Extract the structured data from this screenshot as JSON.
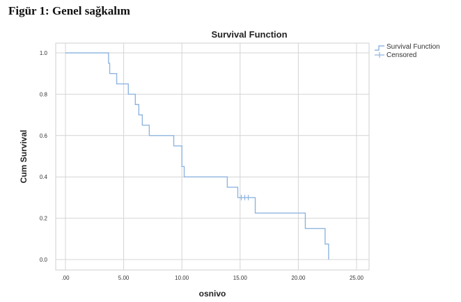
{
  "caption": "Figür 1: Genel sağkalım",
  "chart_data": {
    "type": "line",
    "step": true,
    "title": "Survival Function",
    "xlabel": "osnivo",
    "ylabel": "Cum Survival",
    "xlim": [
      0,
      25
    ],
    "ylim": [
      0,
      1
    ],
    "xticks": [
      0,
      5,
      10,
      15,
      20,
      25
    ],
    "xtick_labels": [
      ".00",
      "5.00",
      "10.00",
      "15.00",
      "20.00",
      "25.00"
    ],
    "yticks": [
      0,
      0.2,
      0.4,
      0.6,
      0.8,
      1.0
    ],
    "ytick_labels": [
      "0.0",
      "0.2",
      "0.4",
      "0.6",
      "0.8",
      "1.0"
    ],
    "grid": true,
    "legend_position": "top-right",
    "series": [
      {
        "name": "Survival Function",
        "color": "#8fb5e0",
        "x": [
          0,
          3.7,
          3.8,
          4.4,
          5.4,
          6.0,
          6.3,
          6.6,
          7.2,
          9.3,
          10.0,
          10.2,
          13.9,
          14.8,
          16.3,
          20.6,
          22.3,
          22.6
        ],
        "y": [
          1.0,
          0.95,
          0.9,
          0.85,
          0.8,
          0.75,
          0.7,
          0.65,
          0.6,
          0.55,
          0.45,
          0.4,
          0.35,
          0.3,
          0.225,
          0.15,
          0.075,
          0.0
        ]
      },
      {
        "name": "Censored",
        "color": "#8fb5e0",
        "x": [
          15.1,
          15.4,
          15.7
        ],
        "y": [
          0.3,
          0.3,
          0.3
        ]
      }
    ]
  }
}
